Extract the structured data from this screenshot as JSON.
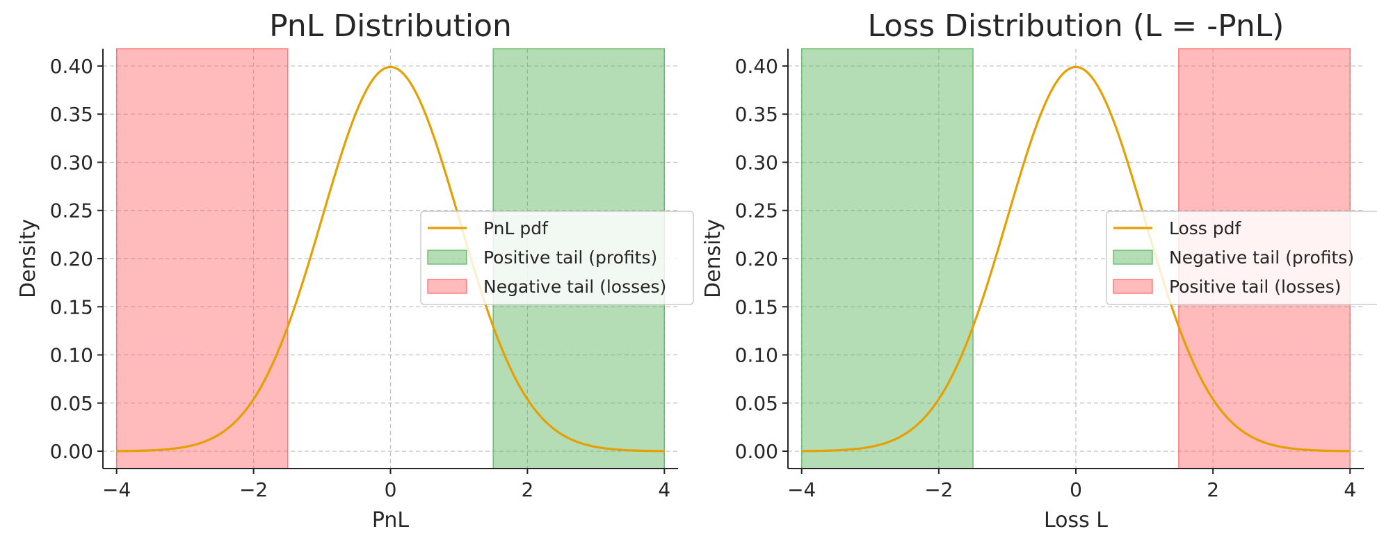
{
  "chart_data": [
    {
      "type": "area",
      "title": "PnL Distribution",
      "xlabel": "PnL",
      "ylabel": "Density",
      "xlim": [
        -4.2,
        4.2
      ],
      "ylim": [
        -0.018,
        0.418
      ],
      "xticks": [
        -4,
        -2,
        0,
        2,
        4
      ],
      "xtick_labels": [
        "−4",
        "−2",
        "0",
        "2",
        "4"
      ],
      "yticks": [
        0.0,
        0.05,
        0.1,
        0.15,
        0.2,
        0.25,
        0.3,
        0.35,
        0.4
      ],
      "ytick_labels": [
        "0.00",
        "0.05",
        "0.10",
        "0.15",
        "0.20",
        "0.25",
        "0.30",
        "0.35",
        "0.40"
      ],
      "grid": true,
      "legend_position": "center-right",
      "series": [
        {
          "name": "PnL pdf",
          "kind": "line",
          "distribution": "standard normal",
          "mean": 0,
          "std": 1,
          "x_range": [
            -4,
            4
          ],
          "color": "#E69F00",
          "peak": 0.399
        },
        {
          "name": "Positive tail (profits)",
          "kind": "band",
          "x_range": [
            1.5,
            4
          ],
          "color": "#4CAF50"
        },
        {
          "name": "Negative tail (losses)",
          "kind": "band",
          "x_range": [
            -4,
            -1.5
          ],
          "color": "#FF5A5F"
        }
      ],
      "legend": [
        "PnL pdf",
        "Positive tail (profits)",
        "Negative tail (losses)"
      ]
    },
    {
      "type": "area",
      "title": "Loss Distribution (L = -PnL)",
      "xlabel": "Loss L",
      "ylabel": "Density",
      "xlim": [
        -4.2,
        4.2
      ],
      "ylim": [
        -0.018,
        0.418
      ],
      "xticks": [
        -4,
        -2,
        0,
        2,
        4
      ],
      "xtick_labels": [
        "−4",
        "−2",
        "0",
        "2",
        "4"
      ],
      "yticks": [
        0.0,
        0.05,
        0.1,
        0.15,
        0.2,
        0.25,
        0.3,
        0.35,
        0.4
      ],
      "ytick_labels": [
        "0.00",
        "0.05",
        "0.10",
        "0.15",
        "0.20",
        "0.25",
        "0.30",
        "0.35",
        "0.40"
      ],
      "grid": true,
      "legend_position": "center-right",
      "series": [
        {
          "name": "Loss pdf",
          "kind": "line",
          "distribution": "standard normal",
          "mean": 0,
          "std": 1,
          "x_range": [
            -4,
            4
          ],
          "color": "#E69F00",
          "peak": 0.399
        },
        {
          "name": "Negative tail (profits)",
          "kind": "band",
          "x_range": [
            -4,
            -1.5
          ],
          "color": "#4CAF50"
        },
        {
          "name": "Positive tail (losses)",
          "kind": "band",
          "x_range": [
            1.5,
            4
          ],
          "color": "#FF5A5F"
        }
      ],
      "legend": [
        "Loss pdf",
        "Negative tail (profits)",
        "Positive tail (losses)"
      ]
    }
  ]
}
